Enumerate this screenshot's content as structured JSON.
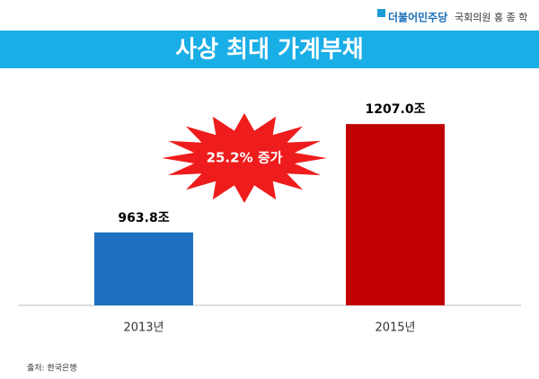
{
  "header": {
    "party": "더불어민주당",
    "member": "국회의원 홍 종 학"
  },
  "chart_data": {
    "type": "bar",
    "title": "사상 최대 가계부채",
    "categories": [
      "2013년",
      "2015년"
    ],
    "values": [
      963.8,
      1207.0
    ],
    "value_labels": [
      "963.8조",
      "1207.0조"
    ],
    "colors": [
      "#1f6fc0",
      "#c00000"
    ],
    "ylim": [
      800,
      1300
    ],
    "annotation": "25.2% 증가",
    "source": "출처: 한국은행"
  }
}
